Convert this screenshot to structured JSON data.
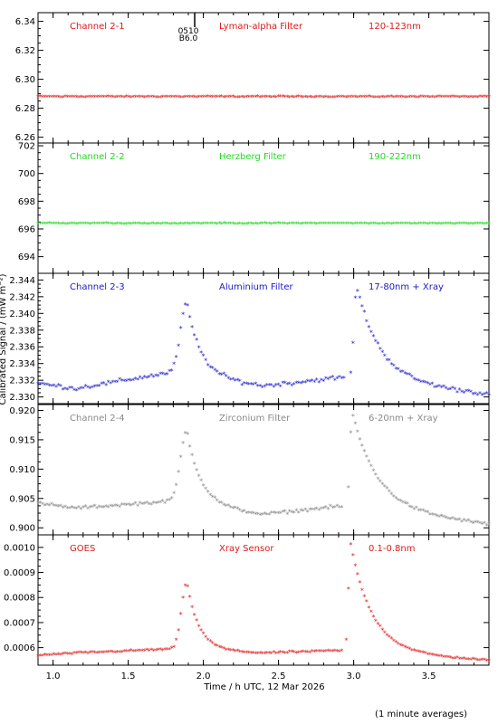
{
  "figure": {
    "x_axis_label": "Time / h UTC, 12 Mar 2026",
    "y_axis_label": "Calibrated Signal / (mW m⁻²)",
    "footer_note": "(1 minute averages)",
    "x_ticks": [
      "1.0",
      "1.5",
      "2.0",
      "2.5",
      "3.0",
      "3.5"
    ],
    "xlim": [
      0.9,
      3.9
    ],
    "top_annotation": {
      "line1": "0510",
      "line2": "B6.0",
      "time": 1.87
    }
  },
  "colors": {
    "red": "#e01818",
    "green": "#22d822",
    "blue": "#1a1ac8",
    "gray": "#8a8a8a",
    "axis": "#000000"
  },
  "chart_data": [
    {
      "type": "scatter",
      "title": "Channel 2-1",
      "filter": "Lyman-alpha Filter",
      "band": "120-123nm",
      "color": "red",
      "ylim": [
        6.256,
        6.346
      ],
      "y_ticks": [
        "6.26",
        "6.28",
        "6.30",
        "6.32",
        "6.34"
      ],
      "y_tick_values": [
        6.26,
        6.28,
        6.3,
        6.32,
        6.34
      ],
      "profile": "flat",
      "params": {
        "base": 6.2875,
        "noise": 0.0004
      }
    },
    {
      "type": "scatter",
      "title": "Channel 2-2",
      "filter": "Herzberg Filter",
      "band": "190-222nm",
      "color": "green",
      "ylim": [
        692.8,
        702.2
      ],
      "y_ticks": [
        "694",
        "696",
        "698",
        "700",
        "702"
      ],
      "y_tick_values": [
        694,
        696,
        698,
        700,
        702
      ],
      "profile": "flat",
      "params": {
        "base": 696.35,
        "noise": 0.03
      }
    },
    {
      "type": "scatter",
      "title": "Channel 2-3",
      "filter": "Aluminium Filter",
      "band": "17-80nm + Xray",
      "color": "blue",
      "ylim": [
        2.3292,
        2.3448
      ],
      "y_ticks": [
        "2.330",
        "2.332",
        "2.334",
        "2.336",
        "2.338",
        "2.340",
        "2.342",
        "2.344"
      ],
      "y_tick_values": [
        2.33,
        2.332,
        2.334,
        2.336,
        2.338,
        2.34,
        2.342,
        2.344
      ],
      "profile": "flare",
      "params": {
        "base_start": 2.3315,
        "base_dip": 2.3309,
        "base_mid": 2.3327,
        "base_post": 2.3312,
        "base_pre2": 2.3322,
        "base_end": 2.3302,
        "f1_time": 1.89,
        "f1_peak": 2.3412,
        "f1_rise": 0.06,
        "f1_decay": 0.09,
        "f2_time": 3.02,
        "f2_peak": 2.3432,
        "f2_rise": 0.025,
        "f2_decay": 0.15,
        "gap": [
          2.95,
          2.97
        ],
        "noise": 0.0003
      }
    },
    {
      "type": "scatter",
      "title": "Channel 2-4",
      "filter": "Zirconium Filter",
      "band": "6-20nm + Xray",
      "color": "gray",
      "ylim": [
        0.8988,
        0.921
      ],
      "y_ticks": [
        "0.900",
        "0.905",
        "0.910",
        "0.915",
        "0.920"
      ],
      "y_tick_values": [
        0.9,
        0.905,
        0.91,
        0.915,
        0.92
      ],
      "profile": "flare",
      "params": {
        "base_start": 0.904,
        "base_dip": 0.9032,
        "base_mid": 0.9043,
        "base_post": 0.9021,
        "base_pre2": 0.9035,
        "base_end": 0.9004,
        "f1_time": 1.89,
        "f1_peak": 0.9165,
        "f1_rise": 0.06,
        "f1_decay": 0.09,
        "f2_time": 2.99,
        "f2_peak": 0.9195,
        "f2_rise": 0.02,
        "f2_decay": 0.16,
        "gap": [
          2.93,
          2.96
        ],
        "noise": 0.0003
      }
    },
    {
      "type": "scatter",
      "title": "GOES",
      "filter": "Xray Sensor",
      "band": "0.1-0.8nm",
      "color": "red",
      "ylim": [
        0.00053,
        0.00105
      ],
      "y_ticks": [
        "0.0006",
        "0.0007",
        "0.0008",
        "0.0009",
        "0.0010"
      ],
      "y_tick_values": [
        0.0006,
        0.0007,
        0.0008,
        0.0009,
        0.001
      ],
      "profile": "flare",
      "params": {
        "base_start": 0.000565,
        "base_dip": 0.000575,
        "base_mid": 0.00059,
        "base_post": 0.000575,
        "base_pre2": 0.000585,
        "base_end": 0.000545,
        "f1_time": 1.89,
        "f1_peak": 0.000858,
        "f1_rise": 0.05,
        "f1_decay": 0.08,
        "f2_time": 2.98,
        "f2_peak": 0.00101,
        "f2_rise": 0.02,
        "f2_decay": 0.14,
        "gap": [
          2.93,
          2.95
        ],
        "noise": 4e-06
      }
    }
  ]
}
